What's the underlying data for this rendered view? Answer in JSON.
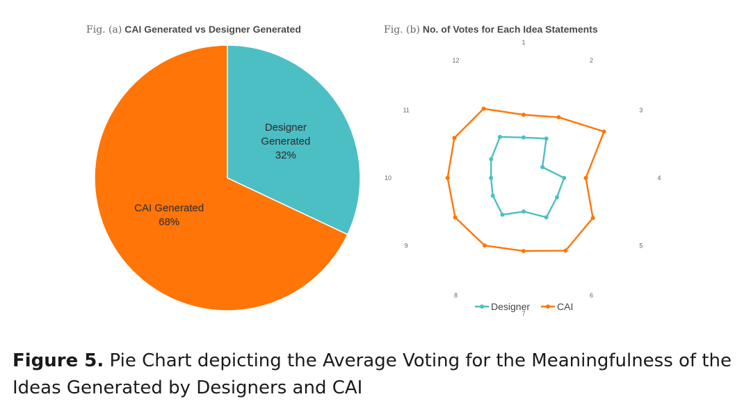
{
  "chart_data": [
    {
      "type": "pie",
      "figure_label": "Fig. (a)",
      "title": "CAI Generated vs Designer Generated",
      "slices": [
        {
          "label_lines": [
            "Designer",
            "Generated"
          ],
          "value": 32,
          "value_text": "32%",
          "color": "#4bbfc4"
        },
        {
          "label_lines": [
            "CAI Generated"
          ],
          "value": 68,
          "value_text": "68%",
          "color": "#ff7507"
        }
      ]
    },
    {
      "type": "radar",
      "figure_label": "Fig. (b)",
      "title": "No. of Votes for Each Idea Statements",
      "categories": [
        "1",
        "2",
        "3",
        "4",
        "5",
        "6",
        "7",
        "8",
        "9",
        "10",
        "11",
        "12"
      ],
      "rmax": 10,
      "series": [
        {
          "name": "Designer",
          "color": "#4bbfc4",
          "values": [
            4.1,
            4.6,
            2.2,
            4.1,
            3.9,
            4.6,
            3.4,
            4.3,
            3.6,
            3.3,
            3.8,
            4.8
          ]
        },
        {
          "name": "CAI",
          "color": "#ff7507",
          "values": [
            6.4,
            7.1,
            9.4,
            6.3,
            8.1,
            8.5,
            7.4,
            7.9,
            8.0,
            7.7,
            8.1,
            8.1
          ]
        }
      ],
      "legend_position": "bottom"
    }
  ],
  "caption": {
    "label": "Figure 5.",
    "text": " Pie Chart depicting the Average Voting for the Meaningfulness of the Ideas Generated by Designers and CAI"
  }
}
